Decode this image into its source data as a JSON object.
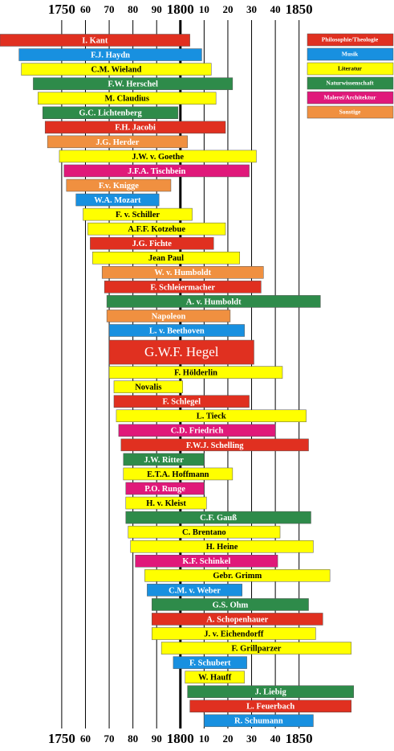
{
  "chart_data": {
    "type": "timeline",
    "xlim": [
      1724,
      1890
    ],
    "xticks": [
      {
        "value": 1750,
        "label": "1750"
      },
      {
        "value": 1760,
        "label": "60"
      },
      {
        "value": 1770,
        "label": "70"
      },
      {
        "value": 1780,
        "label": "80"
      },
      {
        "value": 1790,
        "label": "90"
      },
      {
        "value": 1800,
        "label": "1800"
      },
      {
        "value": 1810,
        "label": "10"
      },
      {
        "value": 1820,
        "label": "20"
      },
      {
        "value": 1830,
        "label": "30"
      },
      {
        "value": 1840,
        "label": "40"
      },
      {
        "value": 1850,
        "label": "1850"
      }
    ],
    "grid": true,
    "legend": [
      {
        "name": "Philosophie/Theologie",
        "color": "#e03020"
      },
      {
        "name": "Musik",
        "color": "#1890e0"
      },
      {
        "name": "Literatur",
        "color": "#ffff00"
      },
      {
        "name": "Naturwissenschaft",
        "color": "#2e8b4a"
      },
      {
        "name": "Malerei/Architektur",
        "color": "#e0187a"
      },
      {
        "name": "Sonstige",
        "color": "#f09040"
      }
    ],
    "bars": [
      {
        "label": "I. Kant",
        "start": 1724,
        "end": 1804,
        "category": "Philosophie/Theologie"
      },
      {
        "label": "F.J. Haydn",
        "start": 1732,
        "end": 1809,
        "category": "Musik"
      },
      {
        "label": "C.M. Wieland",
        "start": 1733,
        "end": 1813,
        "category": "Literatur"
      },
      {
        "label": "F.W. Herschel",
        "start": 1738,
        "end": 1822,
        "category": "Naturwissenschaft"
      },
      {
        "label": "M. Claudius",
        "start": 1740,
        "end": 1815,
        "category": "Literatur"
      },
      {
        "label": "G.C. Lichtenberg",
        "start": 1742,
        "end": 1799,
        "category": "Naturwissenschaft"
      },
      {
        "label": "F.H. Jacobi",
        "start": 1743,
        "end": 1819,
        "category": "Philosophie/Theologie"
      },
      {
        "label": "J.G. Herder",
        "start": 1744,
        "end": 1803,
        "category": "Sonstige"
      },
      {
        "label": "J.W. v. Goethe",
        "start": 1749,
        "end": 1832,
        "category": "Literatur"
      },
      {
        "label": "J.F.A. Tischbein",
        "start": 1751,
        "end": 1829,
        "category": "Malerei/Architektur"
      },
      {
        "label": "F.v. Knigge",
        "start": 1752,
        "end": 1796,
        "category": "Sonstige"
      },
      {
        "label": "W.A. Mozart",
        "start": 1756,
        "end": 1791,
        "category": "Musik"
      },
      {
        "label": "F. v. Schiller",
        "start": 1759,
        "end": 1805,
        "category": "Literatur"
      },
      {
        "label": "A.F.F. Kotzebue",
        "start": 1761,
        "end": 1819,
        "category": "Literatur"
      },
      {
        "label": "J.G. Fichte",
        "start": 1762,
        "end": 1814,
        "category": "Philosophie/Theologie"
      },
      {
        "label": "Jean Paul",
        "start": 1763,
        "end": 1825,
        "category": "Literatur"
      },
      {
        "label": "W. v. Humboldt",
        "start": 1767,
        "end": 1835,
        "category": "Sonstige"
      },
      {
        "label": "F. Schleiermacher",
        "start": 1768,
        "end": 1834,
        "category": "Philosophie/Theologie"
      },
      {
        "label": "A. v. Humboldt",
        "start": 1769,
        "end": 1859,
        "category": "Naturwissenschaft"
      },
      {
        "label": "Napoleon",
        "start": 1769,
        "end": 1821,
        "category": "Sonstige"
      },
      {
        "label": "L. v. Beethoven",
        "start": 1770,
        "end": 1827,
        "category": "Musik"
      },
      {
        "label": "G.W.F. Hegel",
        "start": 1770,
        "end": 1831,
        "category": "Philosophie/Theologie",
        "large": true
      },
      {
        "label": "F. Hölderlin",
        "start": 1770,
        "end": 1843,
        "category": "Literatur"
      },
      {
        "label": "Novalis",
        "start": 1772,
        "end": 1801,
        "category": "Literatur"
      },
      {
        "label": "F. Schlegel",
        "start": 1772,
        "end": 1829,
        "category": "Philosophie/Theologie"
      },
      {
        "label": "L. Tieck",
        "start": 1773,
        "end": 1853,
        "category": "Literatur"
      },
      {
        "label": "C.D. Friedrich",
        "start": 1774,
        "end": 1840,
        "category": "Malerei/Architektur"
      },
      {
        "label": "F.W.J. Schelling",
        "start": 1775,
        "end": 1854,
        "category": "Philosophie/Theologie"
      },
      {
        "label": "J.W. Ritter",
        "start": 1776,
        "end": 1810,
        "category": "Naturwissenschaft"
      },
      {
        "label": "E.T.A. Hoffmann",
        "start": 1776,
        "end": 1822,
        "category": "Literatur"
      },
      {
        "label": "P.O. Runge",
        "start": 1777,
        "end": 1810,
        "category": "Malerei/Architektur"
      },
      {
        "label": "H. v. Kleist",
        "start": 1777,
        "end": 1811,
        "category": "Literatur"
      },
      {
        "label": "C.F. Gauß",
        "start": 1777,
        "end": 1855,
        "category": "Naturwissenschaft"
      },
      {
        "label": "C. Brentano",
        "start": 1778,
        "end": 1842,
        "category": "Literatur"
      },
      {
        "label": "H. Heine",
        "start": 1779,
        "end": 1856,
        "category": "Literatur"
      },
      {
        "label": "K.F. Schinkel",
        "start": 1781,
        "end": 1841,
        "category": "Malerei/Architektur"
      },
      {
        "label": "Gebr. Grimm",
        "start": 1785,
        "end": 1863,
        "category": "Literatur"
      },
      {
        "label": "C.M. v. Weber",
        "start": 1786,
        "end": 1826,
        "category": "Musik"
      },
      {
        "label": "G.S. Ohm",
        "start": 1788,
        "end": 1854,
        "category": "Naturwissenschaft"
      },
      {
        "label": "A. Schopenhauer",
        "start": 1788,
        "end": 1860,
        "category": "Philosophie/Theologie"
      },
      {
        "label": "J. v. Eichendorff",
        "start": 1788,
        "end": 1857,
        "category": "Literatur"
      },
      {
        "label": "F. Grillparzer",
        "start": 1792,
        "end": 1872,
        "category": "Literatur"
      },
      {
        "label": "F. Schubert",
        "start": 1797,
        "end": 1828,
        "category": "Musik"
      },
      {
        "label": "W. Hauff",
        "start": 1802,
        "end": 1827,
        "category": "Literatur"
      },
      {
        "label": "J. Liebig",
        "start": 1803,
        "end": 1873,
        "category": "Naturwissenschaft"
      },
      {
        "label": "L. Feuerbach",
        "start": 1804,
        "end": 1872,
        "category": "Philosophie/Theologie"
      },
      {
        "label": "R. Schumann",
        "start": 1810,
        "end": 1856,
        "category": "Musik"
      }
    ]
  }
}
